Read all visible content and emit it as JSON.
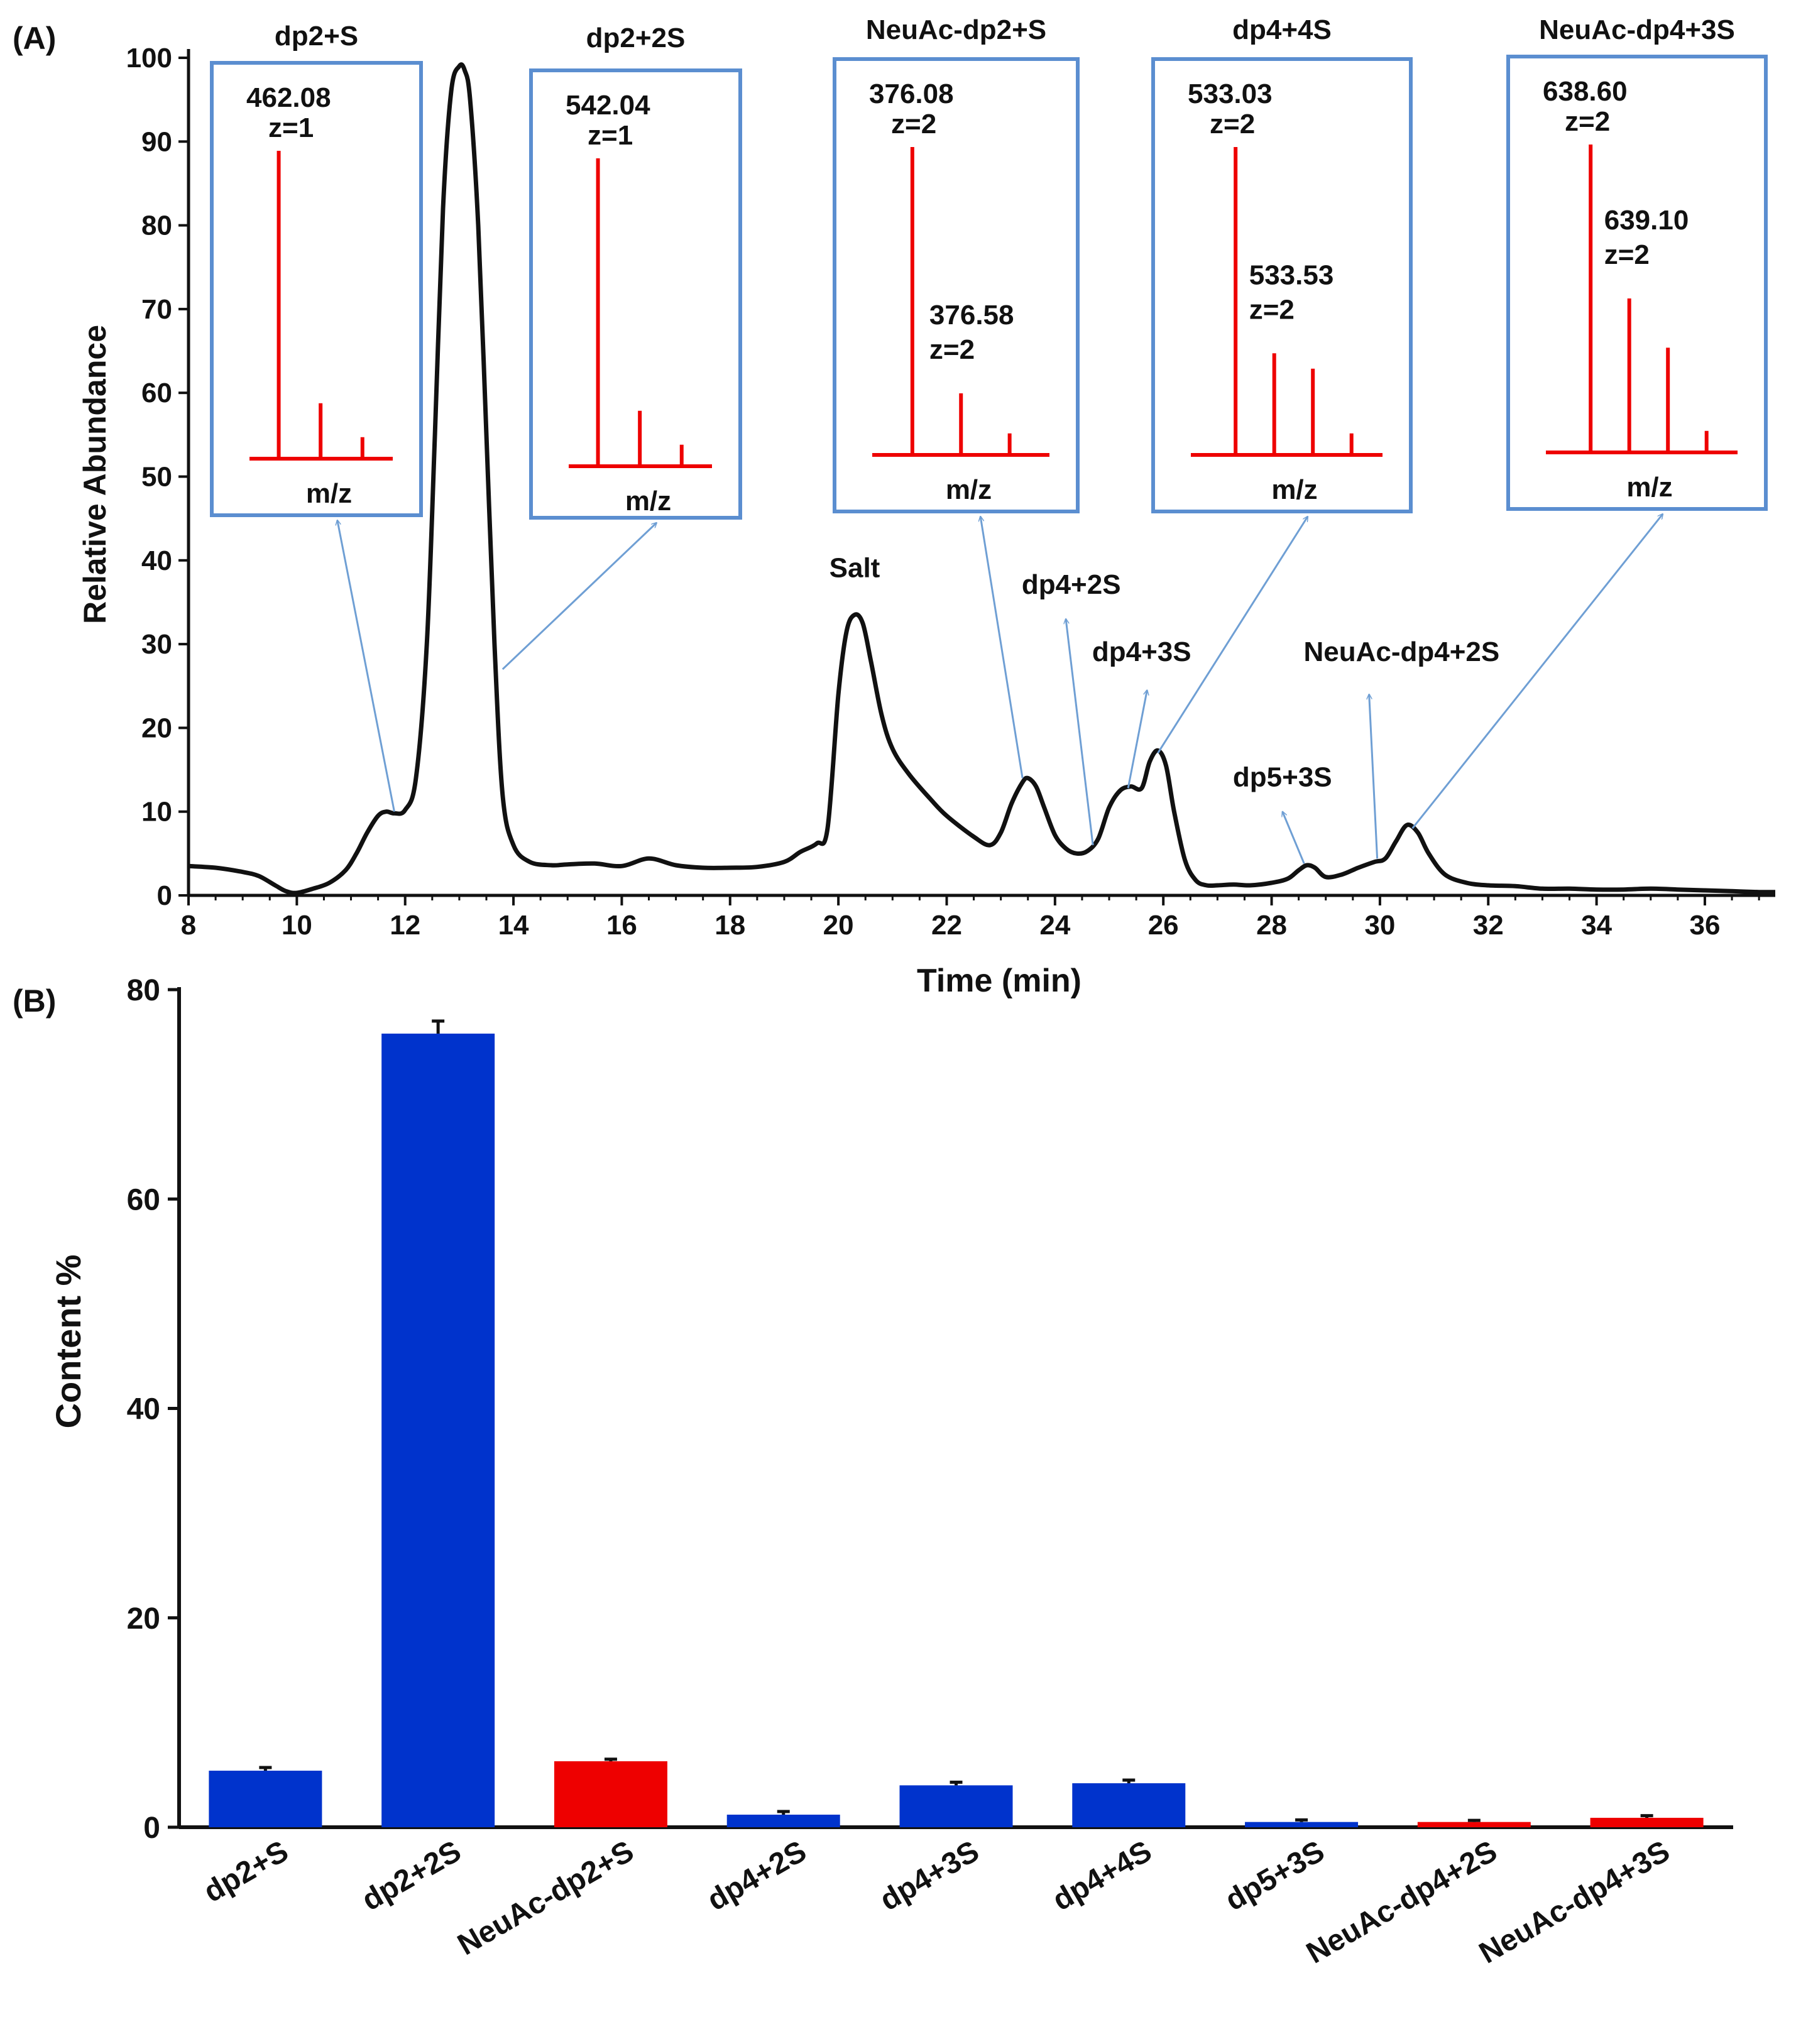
{
  "panel_a_label": "(A)",
  "panel_b_label": "(B)",
  "chart_data": [
    {
      "type": "line",
      "title": "",
      "xlabel": "Time (min)",
      "ylabel": "Relative Abundance",
      "xlim": [
        8,
        37.3
      ],
      "ylim": [
        0,
        100
      ],
      "xticks": [
        8,
        10,
        12,
        14,
        16,
        18,
        20,
        22,
        24,
        26,
        28,
        30,
        32,
        34,
        36
      ],
      "yticks": [
        0,
        10,
        20,
        30,
        40,
        50,
        60,
        70,
        80,
        90,
        100
      ],
      "grid": false,
      "series": [
        {
          "name": "chromatogram",
          "x": [
            8,
            8.5,
            9,
            9.3,
            9.6,
            9.8,
            10,
            10.3,
            10.6,
            10.9,
            11.1,
            11.3,
            11.5,
            11.65,
            11.8,
            12,
            12.2,
            12.4,
            12.55,
            12.7,
            12.85,
            13,
            13.1,
            13.2,
            13.35,
            13.5,
            13.65,
            13.8,
            14,
            14.3,
            14.7,
            15,
            15.5,
            16,
            16.5,
            17,
            17.5,
            18,
            18.5,
            19,
            19.3,
            19.6,
            19.8,
            20,
            20.15,
            20.3,
            20.45,
            20.6,
            20.8,
            21,
            21.3,
            21.7,
            22,
            22.5,
            22.8,
            23,
            23.2,
            23.4,
            23.5,
            23.65,
            23.8,
            24,
            24.2,
            24.4,
            24.6,
            24.8,
            25,
            25.2,
            25.4,
            25.6,
            25.75,
            25.9,
            26.05,
            26.2,
            26.4,
            26.6,
            26.8,
            27,
            27.3,
            27.6,
            28,
            28.3,
            28.5,
            28.65,
            28.8,
            29,
            29.3,
            29.6,
            29.9,
            30.1,
            30.3,
            30.5,
            30.7,
            30.9,
            31.2,
            31.6,
            32,
            32.5,
            33,
            33.5,
            34,
            34.5,
            35,
            35.5,
            36,
            36.5,
            37,
            37.3
          ],
          "y": [
            3.5,
            3.3,
            2.8,
            2.3,
            1.2,
            0.5,
            0.3,
            0.8,
            1.5,
            3,
            5,
            7.5,
            9.5,
            10,
            9.8,
            10.2,
            14,
            30,
            55,
            82,
            96,
            99,
            98.5,
            95,
            80,
            55,
            30,
            12,
            6,
            4,
            3.6,
            3.7,
            3.8,
            3.5,
            4.4,
            3.6,
            3.3,
            3.3,
            3.4,
            4,
            5.2,
            6.2,
            8,
            24,
            31.5,
            33.5,
            32.5,
            28,
            21.5,
            17.5,
            14.5,
            11.5,
            9.5,
            7,
            6,
            7.5,
            11,
            13.5,
            14,
            13,
            10.5,
            7.2,
            5.6,
            5,
            5.3,
            6.8,
            10.5,
            12.5,
            13,
            12.8,
            16,
            17.3,
            15.5,
            10,
            4.2,
            1.8,
            1.2,
            1.2,
            1.3,
            1.2,
            1.5,
            2,
            3,
            3.6,
            3.3,
            2.2,
            2.5,
            3.3,
            4,
            4.4,
            6.5,
            8.4,
            7.5,
            5,
            2.5,
            1.5,
            1.2,
            1.1,
            0.8,
            0.8,
            0.7,
            0.7,
            0.8,
            0.7,
            0.6,
            0.5,
            0.4,
            0.4
          ]
        }
      ],
      "annotations": [
        {
          "text": "Salt",
          "x": 20.3,
          "y": 38
        },
        {
          "text": "dp4+2S",
          "x": 24.3,
          "y": 36,
          "arrow_from": {
            "x": 24.7,
            "y": 6
          },
          "arrow_to": {
            "x": 24.2,
            "y": 33
          }
        },
        {
          "text": "dp4+3S",
          "x": 25.6,
          "y": 28,
          "arrow_from": {
            "x": 25.35,
            "y": 12.8
          },
          "arrow_to": {
            "x": 25.7,
            "y": 24.5
          }
        },
        {
          "text": "dp5+3S",
          "x": 28.2,
          "y": 13,
          "arrow_from": {
            "x": 28.6,
            "y": 3.8
          },
          "arrow_to": {
            "x": 28.2,
            "y": 10
          }
        },
        {
          "text": "NeuAc-dp4+2S",
          "x": 30.4,
          "y": 28,
          "arrow_from": {
            "x": 29.95,
            "y": 4.4
          },
          "arrow_to": {
            "x": 29.8,
            "y": 24
          }
        }
      ],
      "insets": [
        {
          "title": "dp2+S",
          "peak_label": "462.08",
          "charge_label": "z=1",
          "secondary_label": "",
          "secondary_charge": "",
          "xlabel": "m/z",
          "peaks": [
            1.0,
            0.18,
            0.07
          ],
          "points_to": {
            "x": 11.8,
            "y": 10
          }
        },
        {
          "title": "dp2+2S",
          "peak_label": "542.04",
          "charge_label": "z=1",
          "secondary_label": "",
          "secondary_charge": "",
          "xlabel": "m/z",
          "peaks": [
            1.0,
            0.18,
            0.07
          ],
          "points_to": {
            "x": 13.8,
            "y": 27
          }
        },
        {
          "title": "NeuAc-dp2+S",
          "peak_label": "376.08",
          "charge_label": "z=2",
          "secondary_label": "376.58",
          "secondary_charge": "z=2",
          "xlabel": "m/z",
          "peaks": [
            1.0,
            0.2,
            0.07
          ],
          "points_to": {
            "x": 23.4,
            "y": 14
          }
        },
        {
          "title": "dp4+4S",
          "peak_label": "533.03",
          "charge_label": "z=2",
          "secondary_label": "533.53",
          "secondary_charge": "z=2",
          "xlabel": "m/z",
          "peaks": [
            1.0,
            0.33,
            0.28,
            0.07
          ],
          "points_to": {
            "x": 25.9,
            "y": 17
          }
        },
        {
          "title": "NeuAc-dp4+3S",
          "peak_label": "638.60",
          "charge_label": "z=2",
          "secondary_label": "639.10",
          "secondary_charge": "z=2",
          "xlabel": "m/z",
          "peaks": [
            1.0,
            0.5,
            0.34,
            0.07
          ],
          "points_to": {
            "x": 30.6,
            "y": 8
          }
        }
      ]
    },
    {
      "type": "bar",
      "title": "",
      "xlabel": "",
      "ylabel": "Content %",
      "ylim": [
        0,
        80
      ],
      "yticks": [
        0,
        20,
        40,
        60,
        80
      ],
      "categories": [
        "dp2+S",
        "dp2+2S",
        "NeuAc-dp2+S",
        "dp4+2S",
        "dp4+3S",
        "dp4+4S",
        "dp5+3S",
        "NeuAc-dp4+2S",
        "NeuAc-dp4+3S"
      ],
      "values": [
        5.4,
        75.8,
        6.3,
        1.2,
        4.0,
        4.2,
        0.5,
        0.5,
        0.9
      ],
      "errors": [
        0.3,
        1.2,
        0.2,
        0.3,
        0.3,
        0.3,
        0.2,
        0.15,
        0.2
      ],
      "colors": [
        "#0033cc",
        "#0033cc",
        "#ee0000",
        "#0033cc",
        "#0033cc",
        "#0033cc",
        "#0033cc",
        "#ee0000",
        "#ee0000"
      ]
    }
  ],
  "colors": {
    "trace": "#111111",
    "arrow": "#6f9fd4",
    "inset_border": "#5b8ed0",
    "spectrum": "#ee0000",
    "axis": "#111111"
  }
}
